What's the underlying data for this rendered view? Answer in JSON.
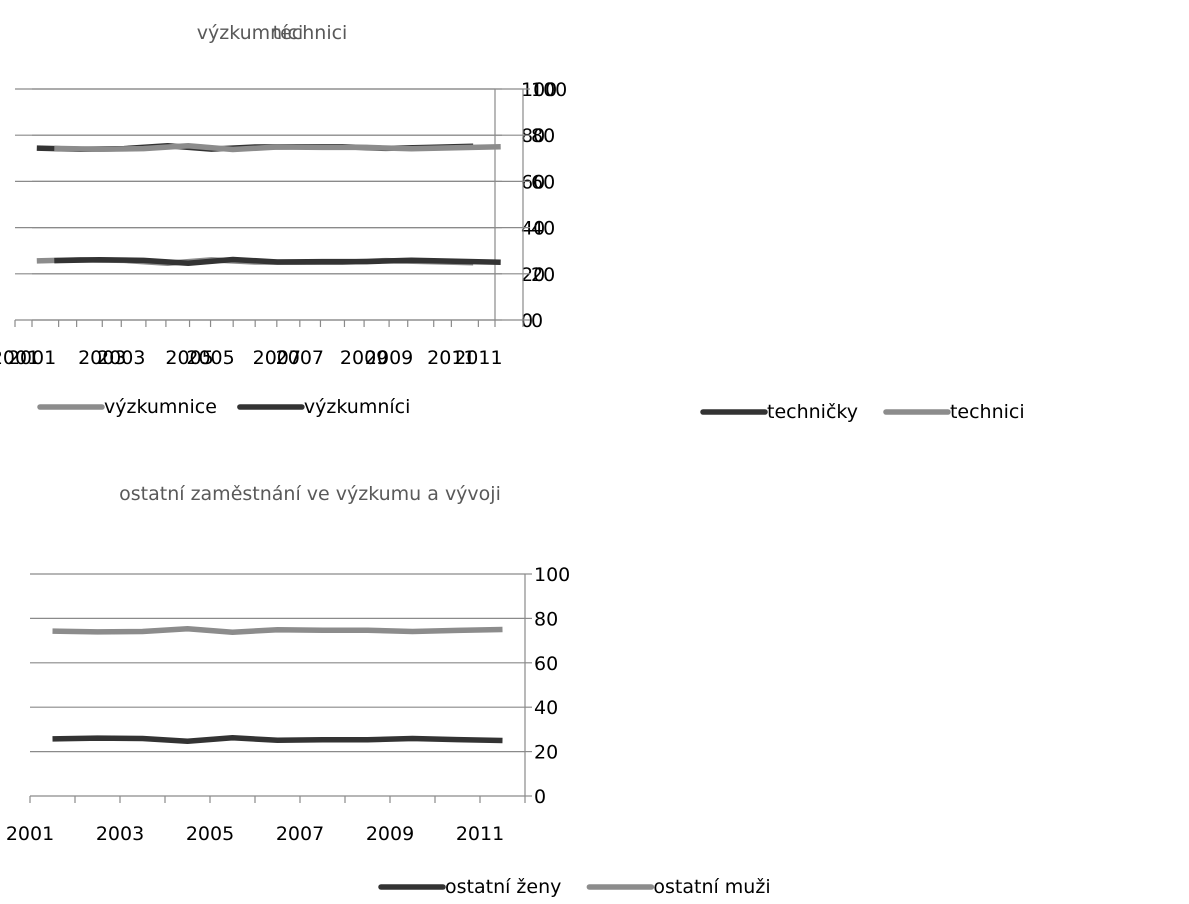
{
  "chart_data": [
    {
      "type": "line",
      "title": "výzkumníci",
      "x": [
        "2001",
        "2002",
        "2003",
        "2004",
        "2005",
        "2006",
        "2007",
        "2008",
        "2009",
        "2010",
        "2011"
      ],
      "xtick_labels": [
        "2001",
        "2003",
        "2005",
        "2007",
        "2009",
        "2011"
      ],
      "ylim": [
        0,
        100
      ],
      "yticks": [
        "0",
        "20",
        "40",
        "60",
        "80",
        "100"
      ],
      "grid": true,
      "y_axis_side": "right",
      "legend_position": "bottom",
      "series": [
        {
          "name": "výzkumnice",
          "color": "#8c8c8c",
          "values": [
            25.6,
            26.1,
            25.8,
            24.6,
            26.0,
            25.1,
            25.0,
            25.0,
            25.7,
            25.3,
            24.8
          ]
        },
        {
          "name": "výzkumníci",
          "color": "#333333",
          "values": [
            74.4,
            73.9,
            74.2,
            75.4,
            74.0,
            74.9,
            75.0,
            75.0,
            74.3,
            74.7,
            75.2
          ]
        }
      ]
    },
    {
      "type": "line",
      "title": "technici",
      "x": [
        "2001",
        "2002",
        "2003",
        "2004",
        "2005",
        "2006",
        "2007",
        "2008",
        "2009",
        "2010",
        "2011"
      ],
      "xtick_labels": [
        "2001",
        "2003",
        "2005",
        "2007",
        "2009",
        "2011"
      ],
      "ylim": [
        0,
        100
      ],
      "yticks": [
        "0",
        "20",
        "40",
        "60",
        "80",
        "100"
      ],
      "grid": true,
      "y_axis_side": "right",
      "legend_position": "bottom",
      "series": [
        {
          "name": "techničky",
          "color": "#333333",
          "values": [
            25.7,
            26.1,
            25.8,
            24.6,
            26.2,
            25.1,
            25.3,
            25.3,
            25.9,
            25.4,
            25.0
          ]
        },
        {
          "name": "technici",
          "color": "#8c8c8c",
          "values": [
            74.3,
            73.9,
            74.2,
            75.4,
            73.8,
            74.9,
            74.7,
            74.7,
            74.1,
            74.6,
            75.0
          ]
        }
      ]
    },
    {
      "type": "line",
      "title": "ostatní zaměstnání ve výzkumu a vývoji",
      "x": [
        "2001",
        "2002",
        "2003",
        "2004",
        "2005",
        "2006",
        "2007",
        "2008",
        "2009",
        "2010",
        "2011"
      ],
      "xtick_labels": [
        "2001",
        "2003",
        "2005",
        "2007",
        "2009",
        "2011"
      ],
      "ylim": [
        0,
        100
      ],
      "yticks": [
        "0",
        "20",
        "40",
        "60",
        "80",
        "100"
      ],
      "grid": true,
      "y_axis_side": "right",
      "legend_position": "bottom",
      "series": [
        {
          "name": "ostatní ženy",
          "color": "#333333",
          "values": [
            25.7,
            26.1,
            25.9,
            24.7,
            26.2,
            25.1,
            25.3,
            25.3,
            25.9,
            25.4,
            25.0
          ]
        },
        {
          "name": "ostatní muži",
          "color": "#8c8c8c",
          "values": [
            74.3,
            73.9,
            74.1,
            75.3,
            73.8,
            74.9,
            74.7,
            74.7,
            74.1,
            74.6,
            75.0
          ]
        }
      ]
    }
  ]
}
